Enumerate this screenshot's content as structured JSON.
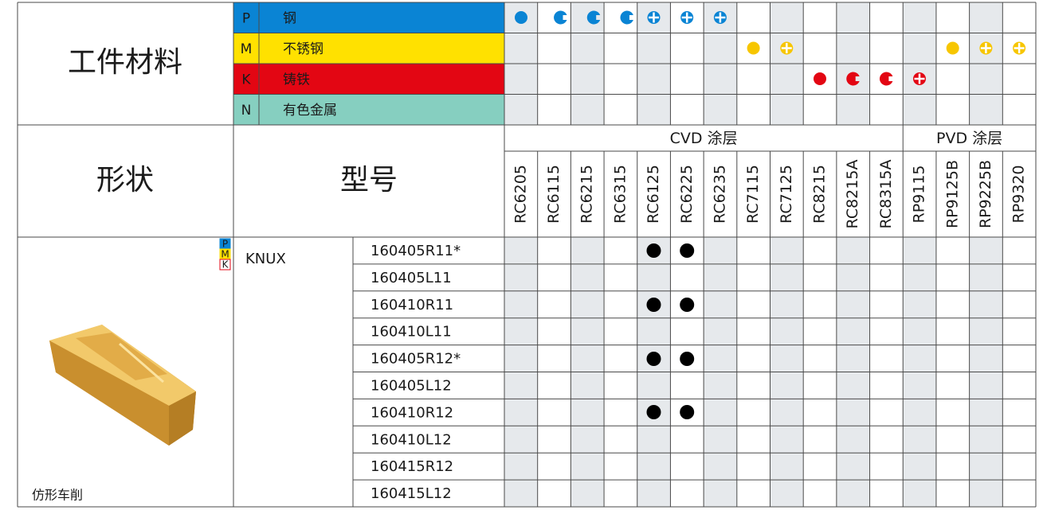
{
  "materials": {
    "title": "工件材料",
    "rows": [
      {
        "code": "P",
        "name": "钢"
      },
      {
        "code": "M",
        "name": "不锈钢"
      },
      {
        "code": "K",
        "name": "铸铁"
      },
      {
        "code": "N",
        "name": "有色金属"
      }
    ]
  },
  "shape": {
    "title": "形状",
    "caption": "仿形车削",
    "badges": [
      "P",
      "M",
      "K"
    ]
  },
  "model": {
    "title": "型号",
    "family": "KNUX",
    "codes": [
      "160405R11*",
      "160405L11",
      "160410R11",
      "160410L11",
      "160405R12*",
      "160405L12",
      "160410R12",
      "160410L12",
      "160415R12",
      "160415L12"
    ]
  },
  "coatings": [
    {
      "name": "CVD 涂层",
      "grades": [
        "RC6205",
        "RC6115",
        "RC6215",
        "RC6315",
        "RC6125",
        "RC6225",
        "RC6235",
        "RC7115",
        "RC7125",
        "RC8215",
        "RC8215A",
        "RC8315A"
      ]
    },
    {
      "name": "PVD 涂层",
      "grades": [
        "RP9115",
        "RP9125B",
        "RP9225B",
        "RP9320"
      ]
    }
  ]
}
